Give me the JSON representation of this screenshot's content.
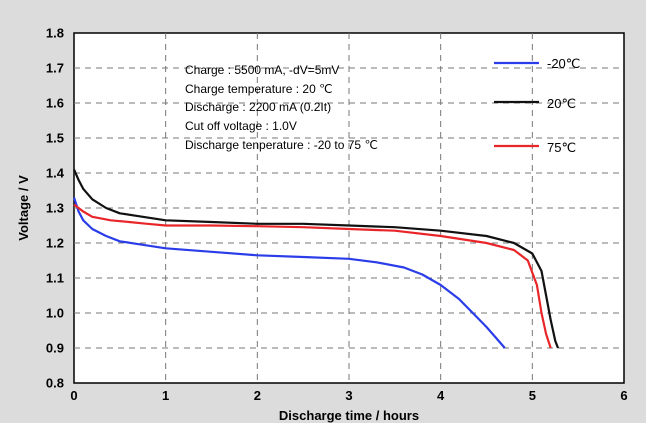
{
  "chart_data": {
    "type": "line",
    "xlabel": "Discharge time / hours",
    "ylabel": "Voltage / V",
    "xlim": [
      0,
      6
    ],
    "ylim": [
      0.8,
      1.8
    ],
    "xticks": [
      "0",
      "1",
      "2",
      "3",
      "4",
      "5",
      "6"
    ],
    "yticks": [
      "0.8",
      "0.9",
      "1.0",
      "1.1",
      "1.2",
      "1.3",
      "1.4",
      "1.5",
      "1.6",
      "1.7",
      "1.8"
    ],
    "grid": true,
    "legend_position": "top-right",
    "annotations": [
      "Charge : 5500 mA, -dV=5mV",
      "Charge temperature : 20 ℃",
      "Discharge : 2200 mA  (0.2It)",
      "Cut off voltage : 1.0V",
      "Discharge tenperature : -20 to 75 ℃"
    ],
    "series": [
      {
        "name": "-20℃",
        "color": "#2a3de8",
        "x": [
          0,
          0.05,
          0.1,
          0.2,
          0.35,
          0.5,
          0.75,
          1.0,
          1.5,
          2.0,
          2.5,
          3.0,
          3.3,
          3.6,
          3.8,
          4.0,
          4.2,
          4.35,
          4.5,
          4.6,
          4.7
        ],
        "y": [
          1.33,
          1.29,
          1.265,
          1.24,
          1.22,
          1.205,
          1.195,
          1.185,
          1.175,
          1.165,
          1.16,
          1.155,
          1.145,
          1.13,
          1.11,
          1.08,
          1.04,
          1.0,
          0.96,
          0.93,
          0.9
        ]
      },
      {
        "name": "20℃",
        "color": "#111111",
        "x": [
          0,
          0.05,
          0.1,
          0.2,
          0.35,
          0.5,
          0.75,
          1.0,
          1.5,
          2.0,
          2.5,
          3.0,
          3.5,
          4.0,
          4.5,
          4.8,
          5.0,
          5.1,
          5.15,
          5.2,
          5.25,
          5.28
        ],
        "y": [
          1.41,
          1.38,
          1.355,
          1.325,
          1.3,
          1.285,
          1.275,
          1.265,
          1.26,
          1.255,
          1.255,
          1.25,
          1.245,
          1.235,
          1.22,
          1.2,
          1.17,
          1.12,
          1.05,
          0.98,
          0.92,
          0.9
        ]
      },
      {
        "name": "75℃",
        "color": "#e8262a",
        "x": [
          0,
          0.1,
          0.2,
          0.4,
          0.6,
          0.8,
          1.0,
          1.5,
          2.0,
          2.5,
          3.0,
          3.5,
          4.0,
          4.5,
          4.8,
          4.95,
          5.05,
          5.1,
          5.15,
          5.2
        ],
        "y": [
          1.31,
          1.29,
          1.275,
          1.265,
          1.26,
          1.255,
          1.25,
          1.25,
          1.248,
          1.245,
          1.24,
          1.235,
          1.22,
          1.2,
          1.18,
          1.15,
          1.08,
          1.0,
          0.94,
          0.9
        ]
      }
    ]
  }
}
